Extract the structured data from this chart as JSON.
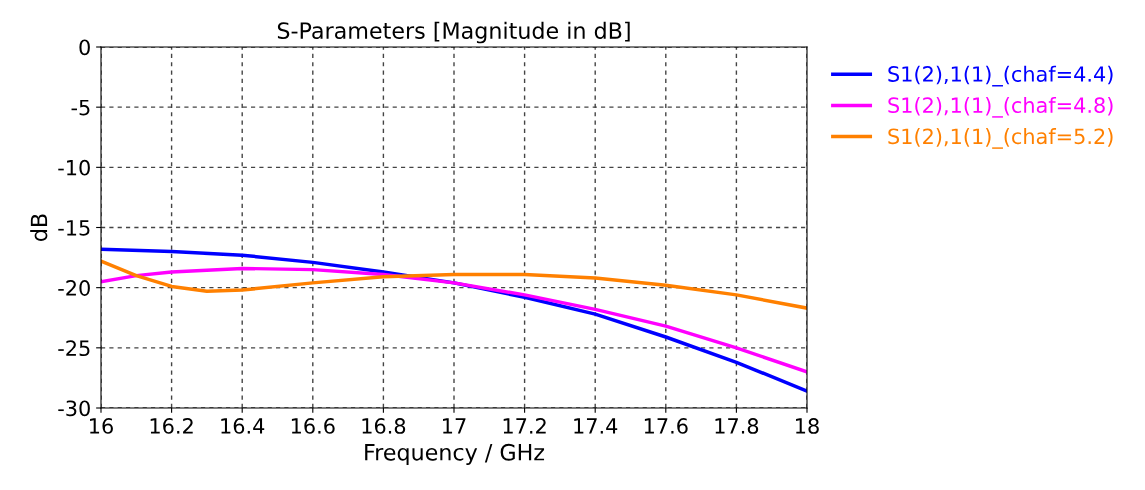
{
  "chart_data": {
    "type": "line",
    "title": "S-Parameters [Magnitude in dB]",
    "xlabel": "Frequency / GHz",
    "ylabel": "dB",
    "xlim": [
      16,
      18
    ],
    "xticks": [
      16,
      16.2,
      16.4,
      16.6,
      16.8,
      17,
      17.2,
      17.4,
      17.6,
      17.8,
      18
    ],
    "ylim": [
      -30,
      0
    ],
    "yticks": [
      -30,
      -25,
      -20,
      -15,
      -10,
      -5,
      0
    ],
    "grid": true,
    "legend": "top right",
    "line_style": "solid",
    "series": [
      {
        "name": "S1(2),1(1)_(chaf=4.4)",
        "color": "#0000ff",
        "x": [
          16,
          16.2,
          16.4,
          16.6,
          16.8,
          17,
          17.2,
          17.4,
          17.6,
          17.8,
          18
        ],
        "values": [
          -16.8,
          -17.0,
          -17.3,
          -17.9,
          -18.7,
          -19.6,
          -20.8,
          -22.2,
          -24.1,
          -26.2,
          -28.6
        ]
      },
      {
        "name": "S1(2),1(1)_(chaf=4.8)",
        "color": "#ff00ff",
        "x": [
          16,
          16.1,
          16.2,
          16.4,
          16.6,
          16.8,
          17,
          17.2,
          17.4,
          17.6,
          17.8,
          18
        ],
        "values": [
          -19.5,
          -19.0,
          -18.7,
          -18.4,
          -18.5,
          -18.9,
          -19.6,
          -20.6,
          -21.8,
          -23.2,
          -25.0,
          -27.0
        ]
      },
      {
        "name": "S1(2),1(1)_(chaf=5.2)",
        "color": "#ff8000",
        "x": [
          16,
          16.1,
          16.2,
          16.3,
          16.4,
          16.6,
          16.8,
          17,
          17.2,
          17.4,
          17.6,
          17.8,
          18
        ],
        "values": [
          -17.8,
          -19.0,
          -19.9,
          -20.3,
          -20.2,
          -19.6,
          -19.1,
          -18.9,
          -18.9,
          -19.2,
          -19.8,
          -20.6,
          -21.7
        ]
      }
    ]
  }
}
